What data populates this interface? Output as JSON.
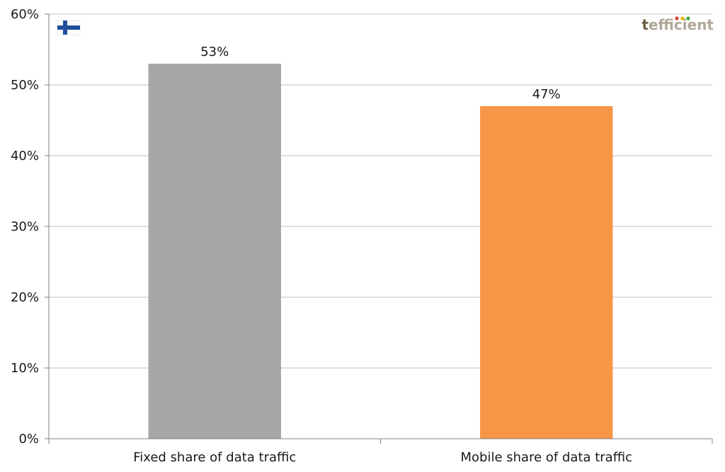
{
  "chart_data": {
    "type": "bar",
    "categories": [
      "Fixed share of data traffic",
      "Mobile share of data traffic"
    ],
    "values": [
      53,
      47
    ],
    "data_labels": [
      "53%",
      "47%"
    ],
    "bar_colors": [
      "#a6a6a6",
      "#f79646"
    ],
    "title": "",
    "xlabel": "",
    "ylabel": "",
    "ylim": [
      0,
      60
    ],
    "yticks": [
      0,
      10,
      20,
      30,
      40,
      50,
      60
    ],
    "ytick_labels": [
      "0%",
      "10%",
      "20%",
      "30%",
      "40%",
      "50%",
      "60%"
    ],
    "grid": true,
    "legend": "none"
  },
  "flag": {
    "country": "Finland",
    "icon": "finland-flag-icon",
    "colors": [
      "#ffffff",
      "#1f4e9c"
    ]
  },
  "logo": {
    "text_first": "t",
    "text_rest": "efficient",
    "colors": [
      "#6b5b45",
      "#b0a898"
    ],
    "dot_colors": [
      "#e03c31",
      "#f5b400",
      "#3aaa35"
    ]
  }
}
